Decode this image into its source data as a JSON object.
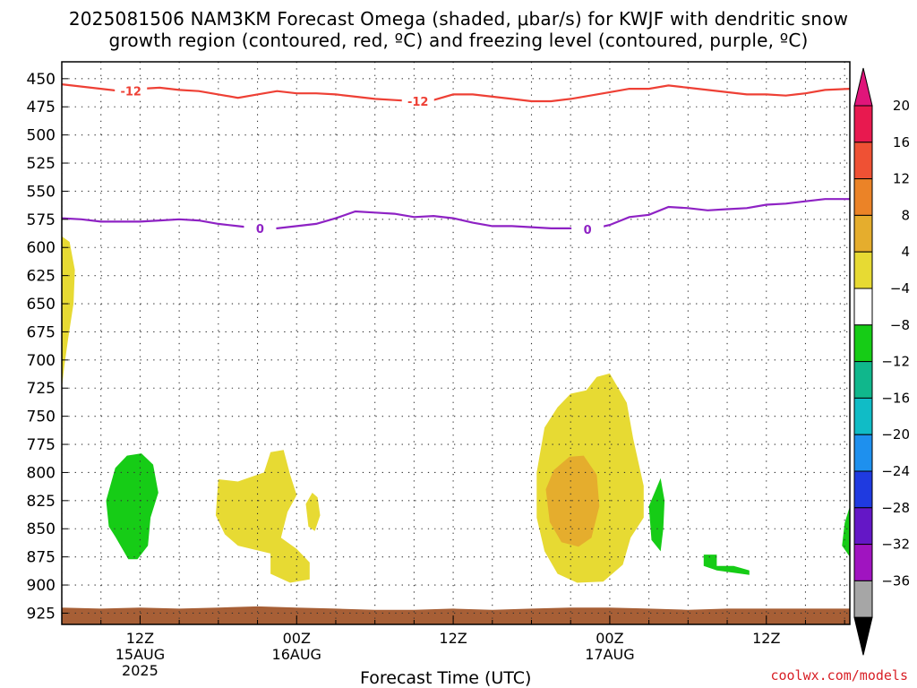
{
  "title_line1": "2025081506 NAM3KM Forecast Omega (shaded, μbar/s) for KWJF with dendritic snow",
  "title_line2": "growth region (contoured, red, ºC) and freezing level (contoured, purple, ºC)",
  "credit": "coolwx.com/models",
  "chart_data": {
    "type": "contour",
    "xlabel": "Forecast Time (UTC)",
    "ylabel": "",
    "x_ticks": [
      {
        "label": "12Z",
        "sub": [
          "15AUG",
          "2025"
        ],
        "hour": 6
      },
      {
        "label": "00Z",
        "sub": [
          "16AUG"
        ],
        "hour": 18
      },
      {
        "label": "12Z",
        "sub": [],
        "hour": 30
      },
      {
        "label": "00Z",
        "sub": [
          "17AUG"
        ],
        "hour": 42
      },
      {
        "label": "12Z",
        "sub": [],
        "hour": 54
      }
    ],
    "x_range_hours": [
      0,
      60.4
    ],
    "y_ticks": [
      450,
      475,
      500,
      525,
      550,
      575,
      600,
      625,
      650,
      675,
      700,
      725,
      750,
      775,
      800,
      825,
      850,
      875,
      900,
      925
    ],
    "y_range_mb": [
      435,
      935
    ],
    "colorbar": {
      "levels": [
        "20",
        "16",
        "12",
        "8",
        "4",
        "−4",
        "−8",
        "−12",
        "−16",
        "−20",
        "−24",
        "−28",
        "−32",
        "−36"
      ],
      "colors": [
        "#e8194f",
        "#ef5134",
        "#eb8327",
        "#e5ad2d",
        "#e7da33",
        "#ffffff",
        "#16cc16",
        "#10b78c",
        "#10bcc6",
        "#1e90ee",
        "#1f3ae0",
        "#6417c6",
        "#a014c0",
        "#a6a6a6"
      ],
      "top_arrow_color": "#e0157a",
      "bottom_arrow_color": "#000000"
    },
    "series": [
      {
        "label": "-12",
        "color": "#ee4035",
        "label_positions": [
          {
            "hour": 5.3,
            "mb": 461
          },
          {
            "hour": 27.3,
            "mb": 470
          }
        ],
        "points": [
          [
            0,
            455
          ],
          [
            1.5,
            457
          ],
          [
            3,
            459
          ],
          [
            4.5,
            461
          ],
          [
            6,
            459
          ],
          [
            7.5,
            458
          ],
          [
            9,
            460
          ],
          [
            10.5,
            461
          ],
          [
            12,
            464
          ],
          [
            13.5,
            467
          ],
          [
            15,
            464
          ],
          [
            16.5,
            461
          ],
          [
            18,
            463
          ],
          [
            19.5,
            463
          ],
          [
            21,
            464
          ],
          [
            22.5,
            466
          ],
          [
            24,
            468
          ],
          [
            25.5,
            469
          ],
          [
            27,
            470
          ],
          [
            28.5,
            469
          ],
          [
            30,
            464
          ],
          [
            31.5,
            464
          ],
          [
            33,
            466
          ],
          [
            34.5,
            468
          ],
          [
            36,
            470
          ],
          [
            37.5,
            470
          ],
          [
            39,
            468
          ],
          [
            40.5,
            465
          ],
          [
            42,
            462
          ],
          [
            43.5,
            459
          ],
          [
            45,
            459
          ],
          [
            46.5,
            456
          ],
          [
            48,
            458
          ],
          [
            49.5,
            460
          ],
          [
            51,
            462
          ],
          [
            52.5,
            464
          ],
          [
            54,
            464
          ],
          [
            55.5,
            465
          ],
          [
            57,
            463
          ],
          [
            58.5,
            460
          ],
          [
            60.4,
            459
          ]
        ]
      },
      {
        "label": "0",
        "color": "#8e22c4",
        "label_positions": [
          {
            "hour": 15.2,
            "mb": 583
          },
          {
            "hour": 40.3,
            "mb": 584
          }
        ],
        "points": [
          [
            0,
            574
          ],
          [
            1.5,
            575
          ],
          [
            3,
            577
          ],
          [
            4.5,
            577
          ],
          [
            6,
            577
          ],
          [
            7.5,
            576
          ],
          [
            9,
            575
          ],
          [
            10.5,
            576
          ],
          [
            12,
            579
          ],
          [
            13.5,
            581
          ],
          [
            15,
            583
          ],
          [
            16.5,
            583
          ],
          [
            18,
            581
          ],
          [
            19.5,
            579
          ],
          [
            21,
            574
          ],
          [
            22.5,
            568
          ],
          [
            24,
            569
          ],
          [
            25.5,
            570
          ],
          [
            27,
            573
          ],
          [
            28.5,
            572
          ],
          [
            30,
            574
          ],
          [
            31.5,
            578
          ],
          [
            33,
            581
          ],
          [
            34.5,
            581
          ],
          [
            36,
            582
          ],
          [
            37.5,
            583
          ],
          [
            39,
            583
          ],
          [
            40.5,
            584
          ],
          [
            42,
            580
          ],
          [
            43.5,
            573
          ],
          [
            45,
            571
          ],
          [
            46.5,
            564
          ],
          [
            48,
            565
          ],
          [
            49.5,
            567
          ],
          [
            51,
            566
          ],
          [
            52.5,
            565
          ],
          [
            54,
            562
          ],
          [
            55.5,
            561
          ],
          [
            57,
            559
          ],
          [
            58.5,
            557
          ],
          [
            60.4,
            557
          ]
        ]
      }
    ],
    "filled_regions": [
      {
        "color": "#e7da33",
        "points": [
          [
            0,
            590
          ],
          [
            0.6,
            595
          ],
          [
            1.0,
            620
          ],
          [
            0.9,
            650
          ],
          [
            0.5,
            680
          ],
          [
            0.2,
            705
          ],
          [
            0,
            725
          ]
        ]
      },
      {
        "color": "#e7da33",
        "points": [
          [
            12,
            806
          ],
          [
            13.5,
            808
          ],
          [
            15.5,
            800
          ],
          [
            16,
            782
          ],
          [
            17,
            780
          ],
          [
            17.5,
            802
          ],
          [
            18,
            820
          ],
          [
            17.3,
            835
          ],
          [
            16.8,
            858
          ],
          [
            18,
            868
          ],
          [
            19,
            880
          ],
          [
            19,
            895
          ],
          [
            17.5,
            898
          ],
          [
            16,
            890
          ],
          [
            16,
            872
          ],
          [
            13.5,
            865
          ],
          [
            12.5,
            855
          ],
          [
            11.8,
            838
          ]
        ]
      },
      {
        "color": "#e7da33",
        "points": [
          [
            18.7,
            828
          ],
          [
            19.2,
            818
          ],
          [
            19.6,
            822
          ],
          [
            19.8,
            838
          ],
          [
            19.4,
            852
          ],
          [
            18.9,
            848
          ]
        ]
      },
      {
        "color": "#e7da33",
        "points": [
          [
            36.4,
            800
          ],
          [
            37,
            760
          ],
          [
            38,
            742
          ],
          [
            39,
            730
          ],
          [
            40.2,
            727
          ],
          [
            41,
            715
          ],
          [
            42,
            712
          ],
          [
            43.3,
            738
          ],
          [
            43.8,
            770
          ],
          [
            44.6,
            812
          ],
          [
            44.6,
            840
          ],
          [
            43.6,
            858
          ],
          [
            43,
            882
          ],
          [
            41.5,
            897
          ],
          [
            39.5,
            898
          ],
          [
            38,
            890
          ],
          [
            37,
            870
          ],
          [
            36.4,
            840
          ]
        ]
      },
      {
        "color": "#e5ad2d",
        "points": [
          [
            37.1,
            815
          ],
          [
            37.7,
            798
          ],
          [
            38.9,
            786
          ],
          [
            40,
            785
          ],
          [
            41,
            802
          ],
          [
            41.2,
            830
          ],
          [
            40.6,
            858
          ],
          [
            39.6,
            866
          ],
          [
            38.3,
            862
          ],
          [
            37.4,
            844
          ]
        ]
      },
      {
        "color": "#16cc16",
        "points": [
          [
            3.4,
            825
          ],
          [
            4.1,
            796
          ],
          [
            5,
            785
          ],
          [
            6.1,
            783
          ],
          [
            7,
            793
          ],
          [
            7.4,
            818
          ],
          [
            6.8,
            840
          ],
          [
            6.6,
            865
          ],
          [
            5.8,
            877
          ],
          [
            5.1,
            877
          ],
          [
            4.1,
            857
          ],
          [
            3.6,
            848
          ]
        ]
      },
      {
        "color": "#16cc16",
        "points": [
          [
            45,
            830
          ],
          [
            45.9,
            805
          ],
          [
            46.2,
            825
          ],
          [
            46.1,
            850
          ],
          [
            45.9,
            870
          ],
          [
            45.2,
            860
          ]
        ]
      },
      {
        "color": "#16cc16",
        "points": [
          [
            49.2,
            873
          ],
          [
            50.2,
            873
          ],
          [
            50.2,
            883
          ],
          [
            51.5,
            883
          ],
          [
            52.7,
            887
          ],
          [
            52.7,
            891
          ],
          [
            50.2,
            887
          ],
          [
            49.2,
            883
          ]
        ]
      },
      {
        "color": "#16cc16",
        "points": [
          [
            60.4,
            830
          ],
          [
            60,
            845
          ],
          [
            59.8,
            865
          ],
          [
            60.4,
            875
          ]
        ]
      }
    ],
    "terrain": {
      "color": "#a75f36",
      "top_mb": 920,
      "points": [
        [
          0,
          920
        ],
        [
          3,
          921
        ],
        [
          6,
          920
        ],
        [
          9,
          921
        ],
        [
          12,
          920
        ],
        [
          15,
          919
        ],
        [
          18,
          920
        ],
        [
          21,
          921
        ],
        [
          24,
          922
        ],
        [
          27,
          922
        ],
        [
          30,
          921
        ],
        [
          33,
          922
        ],
        [
          36,
          921
        ],
        [
          39,
          920
        ],
        [
          42,
          920
        ],
        [
          45,
          921
        ],
        [
          48,
          922
        ],
        [
          51,
          921
        ],
        [
          54,
          921
        ],
        [
          57,
          921
        ],
        [
          60.4,
          921
        ]
      ]
    }
  }
}
